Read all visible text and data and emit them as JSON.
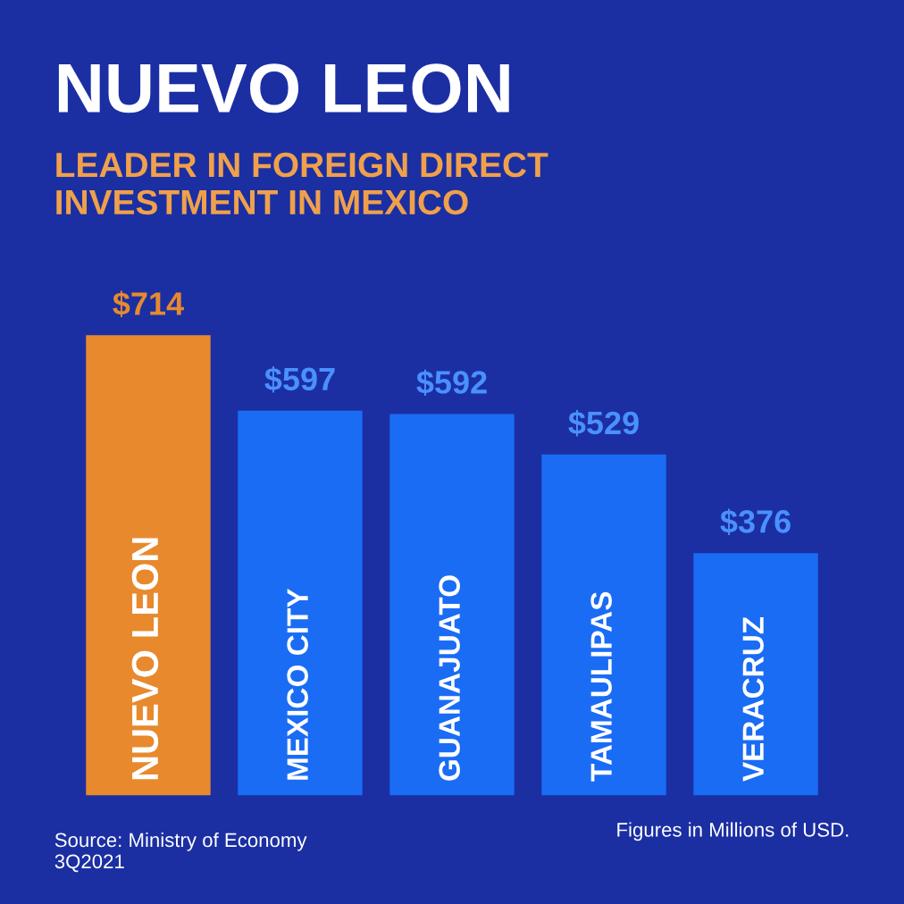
{
  "chart_data": {
    "type": "bar",
    "title": "NUEVO LEON",
    "subtitle": "LEADER IN FOREIGN DIRECT\nINVESTMENT IN MEXICO",
    "categories": [
      "NUEVO LEON",
      "MEXICO CITY",
      "GUANAJUATO",
      "TAMAULIPAS",
      "VERACRUZ"
    ],
    "values": [
      714,
      597,
      592,
      529,
      376
    ],
    "value_labels": [
      "$714",
      "$597",
      "$592",
      "$529",
      "$376"
    ],
    "colors": [
      "#e8892e",
      "#1a6cf5",
      "#1a6cf5",
      "#1a6cf5",
      "#1a6cf5"
    ],
    "annotations": [
      "Source: Ministry of Economy\n3Q2021",
      "Figures in Millions of USD."
    ]
  }
}
